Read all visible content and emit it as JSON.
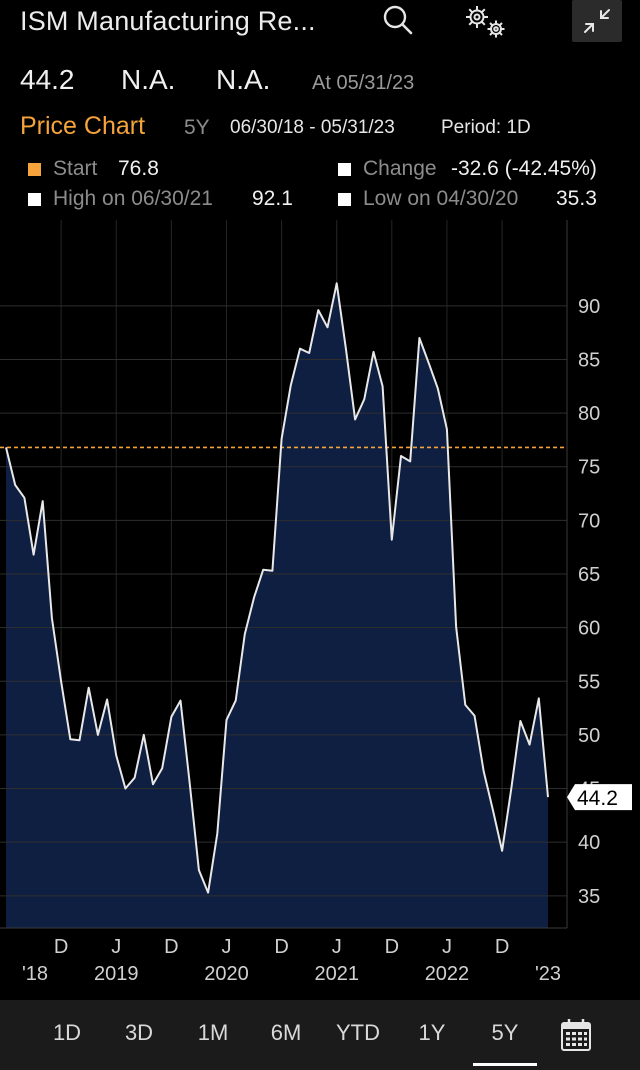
{
  "header": {
    "title": "ISM Manufacturing Re..."
  },
  "quote": {
    "last": "44.2",
    "change": "N.A.",
    "pct_change": "N.A.",
    "as_of": "At 05/31/23"
  },
  "chart_header": {
    "title": "Price Chart",
    "range": "5Y",
    "dates": "06/30/18 - 05/31/23",
    "period": "Period: 1D"
  },
  "stats": {
    "start_label": "Start",
    "start_value": "76.8",
    "change_label": "Change",
    "change_value": "-32.6 (-42.45%)",
    "high_label": "High on 06/30/21",
    "high_value": "92.1",
    "low_label": "Low on 04/30/20",
    "low_value": "35.3"
  },
  "colors": {
    "accent": "#f5a33b",
    "area_fill": "#0f1f42",
    "line": "#e8e8e8",
    "background": "#000000"
  },
  "chart_data": {
    "type": "area",
    "x": [
      "2018-06",
      "2018-07",
      "2018-08",
      "2018-09",
      "2018-10",
      "2018-11",
      "2018-12",
      "2019-01",
      "2019-02",
      "2019-03",
      "2019-04",
      "2019-05",
      "2019-06",
      "2019-07",
      "2019-08",
      "2019-09",
      "2019-10",
      "2019-11",
      "2019-12",
      "2020-01",
      "2020-02",
      "2020-03",
      "2020-04",
      "2020-05",
      "2020-06",
      "2020-07",
      "2020-08",
      "2020-09",
      "2020-10",
      "2020-11",
      "2020-12",
      "2021-01",
      "2021-02",
      "2021-03",
      "2021-04",
      "2021-05",
      "2021-06",
      "2021-07",
      "2021-08",
      "2021-09",
      "2021-10",
      "2021-11",
      "2021-12",
      "2022-01",
      "2022-02",
      "2022-03",
      "2022-04",
      "2022-05",
      "2022-06",
      "2022-07",
      "2022-08",
      "2022-09",
      "2022-10",
      "2022-11",
      "2022-12",
      "2023-01",
      "2023-02",
      "2023-03",
      "2023-04",
      "2023-05"
    ],
    "values": [
      76.8,
      73.3,
      72.1,
      66.8,
      71.8,
      60.9,
      55.0,
      49.6,
      49.5,
      54.4,
      50.0,
      53.3,
      48.1,
      45.0,
      46.0,
      50.0,
      45.4,
      46.9,
      51.7,
      53.2,
      45.5,
      37.4,
      35.3,
      40.8,
      51.4,
      53.2,
      59.4,
      62.8,
      65.4,
      65.3,
      77.6,
      82.6,
      86.0,
      85.6,
      89.6,
      88.0,
      92.1,
      86.0,
      79.4,
      81.3,
      85.7,
      82.5,
      68.2,
      76.0,
      75.5,
      87.0,
      84.7,
      82.3,
      78.5,
      60.1,
      52.8,
      51.8,
      46.6,
      43.0,
      39.2,
      45.0,
      51.3,
      49.1,
      53.4,
      44.2
    ],
    "ylim": [
      32,
      98
    ],
    "y_ticks": [
      35,
      40,
      45,
      50,
      55,
      60,
      65,
      70,
      75,
      80,
      85,
      90
    ],
    "reference_line": 76.8,
    "last_value_label": "44.2",
    "x_tick_labels": [
      {
        "label": "D",
        "date": "2018-12"
      },
      {
        "label": "J",
        "date": "2019-06"
      },
      {
        "label": "D",
        "date": "2019-12"
      },
      {
        "label": "J",
        "date": "2020-06"
      },
      {
        "label": "D",
        "date": "2020-12"
      },
      {
        "label": "J",
        "date": "2021-06"
      },
      {
        "label": "D",
        "date": "2021-12"
      },
      {
        "label": "J",
        "date": "2022-06"
      },
      {
        "label": "D",
        "date": "2022-12"
      }
    ],
    "year_labels": [
      {
        "label": "'18",
        "date": "2018-06"
      },
      {
        "label": "2019",
        "date": "2019-06"
      },
      {
        "label": "2020",
        "date": "2020-06"
      },
      {
        "label": "2021",
        "date": "2021-06"
      },
      {
        "label": "2022",
        "date": "2022-06"
      },
      {
        "label": "'23",
        "date": "2023-05"
      }
    ],
    "grid": true
  },
  "ranges": [
    "1D",
    "3D",
    "1M",
    "6M",
    "YTD",
    "1Y",
    "5Y"
  ],
  "active_range": "5Y"
}
